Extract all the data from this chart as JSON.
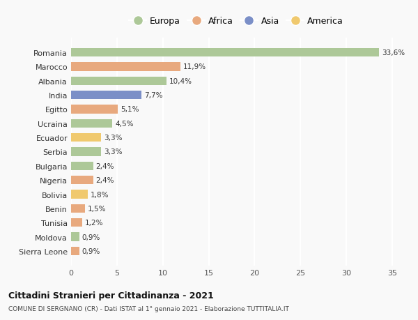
{
  "countries": [
    "Romania",
    "Marocco",
    "Albania",
    "India",
    "Egitto",
    "Ucraina",
    "Ecuador",
    "Serbia",
    "Bulgaria",
    "Nigeria",
    "Bolivia",
    "Benin",
    "Tunisia",
    "Moldova",
    "Sierra Leone"
  ],
  "values": [
    33.6,
    11.9,
    10.4,
    7.7,
    5.1,
    4.5,
    3.3,
    3.3,
    2.4,
    2.4,
    1.8,
    1.5,
    1.2,
    0.9,
    0.9
  ],
  "labels": [
    "33,6%",
    "11,9%",
    "10,4%",
    "7,7%",
    "5,1%",
    "4,5%",
    "3,3%",
    "3,3%",
    "2,4%",
    "2,4%",
    "1,8%",
    "1,5%",
    "1,2%",
    "0,9%",
    "0,9%"
  ],
  "continents": [
    "Europa",
    "Africa",
    "Europa",
    "Asia",
    "Africa",
    "Europa",
    "America",
    "Europa",
    "Europa",
    "Africa",
    "America",
    "Africa",
    "Africa",
    "Europa",
    "Africa"
  ],
  "colors": {
    "Europa": "#adc898",
    "Africa": "#e8a97e",
    "Asia": "#7b8fc7",
    "America": "#f0c96e"
  },
  "legend_order": [
    "Europa",
    "Africa",
    "Asia",
    "America"
  ],
  "background_color": "#f9f9f9",
  "title": "Cittadini Stranieri per Cittadinanza - 2021",
  "subtitle": "COMUNE DI SERGNANO (CR) - Dati ISTAT al 1° gennaio 2021 - Elaborazione TUTTITALIA.IT",
  "xlim": [
    0,
    36
  ],
  "xticks": [
    0,
    5,
    10,
    15,
    20,
    25,
    30,
    35
  ],
  "grid_color": "#ffffff",
  "bar_height": 0.6
}
